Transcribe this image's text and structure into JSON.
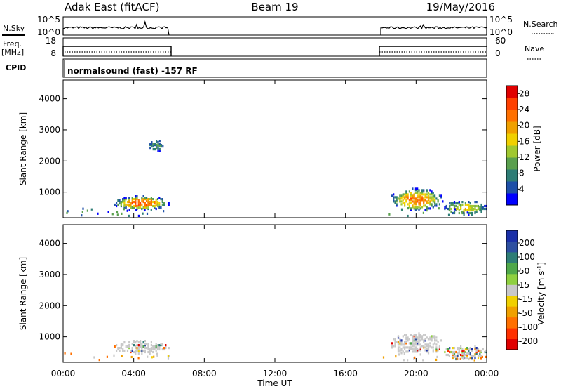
{
  "header": {
    "radar": "Adak East (fitACF)",
    "beam": "Beam 19",
    "date": "19/May/2016"
  },
  "top_panels": {
    "nsky_label": "N.Sky",
    "nsearch_label": "N.Search",
    "noise_ticks": [
      "10^5",
      "10^0"
    ],
    "freq_label": "Freq.",
    "freq_unit": "[MHz]",
    "freq_ticks": [
      "18",
      "8"
    ],
    "nave_label": "Nave",
    "nave_ticks": [
      "60",
      "0"
    ],
    "cpid_label": "CPID",
    "cpid_text": "normalsound (fast) -157 RF"
  },
  "colors": {
    "power_scale": [
      "#0000ff",
      "#1e50a8",
      "#2e7d76",
      "#5aa04e",
      "#a0c830",
      "#f0d000",
      "#f0a000",
      "#ff7000",
      "#ff4000",
      "#e00000"
    ],
    "velocity_scale": [
      "#1a2fa8",
      "#2d4fa0",
      "#2e7d76",
      "#4fa84a",
      "#8fd040",
      "#c8c8c8",
      "#f0d000",
      "#f0a000",
      "#ff7000",
      "#ff3000",
      "#e00000"
    ],
    "ground_scatter": "#c8c8c8"
  },
  "chart_data": [
    {
      "type": "heatmap",
      "name": "power",
      "xlabel": "",
      "ylabel": "Slant Range [km]",
      "x_ticks": [
        "00:00",
        "04:00",
        "08:00",
        "12:00",
        "16:00",
        "20:00",
        "00:00"
      ],
      "y_ticks": [
        "1000",
        "2000",
        "3000",
        "4000"
      ],
      "xlim": [
        0,
        24
      ],
      "ylim": [
        180,
        4600
      ],
      "colorbar": {
        "label": "Power [dB]",
        "ticks": [
          "4",
          "8",
          "12",
          "16",
          "20",
          "24",
          "28"
        ],
        "range": [
          0,
          30
        ]
      },
      "data_gap_hours": [
        6,
        18
      ],
      "scatter_regions": [
        {
          "t": [
            2.8,
            6.0
          ],
          "range": [
            380,
            850
          ],
          "peak": 24
        },
        {
          "t": [
            18.5,
            21.5
          ],
          "range": [
            350,
            1100
          ],
          "peak": 22
        },
        {
          "t": [
            21.5,
            24.0
          ],
          "range": [
            200,
            700
          ],
          "peak": 16
        },
        {
          "t": [
            4.8,
            5.7
          ],
          "range": [
            2250,
            2650
          ],
          "peak": 8
        }
      ]
    },
    {
      "type": "heatmap",
      "name": "velocity",
      "xlabel": "Time UT",
      "ylabel": "Slant Range [km]",
      "x_ticks": [
        "00:00",
        "04:00",
        "08:00",
        "12:00",
        "16:00",
        "20:00",
        "00:00"
      ],
      "y_ticks": [
        "1000",
        "2000",
        "3000",
        "4000"
      ],
      "xlim": [
        0,
        24
      ],
      "ylim": [
        180,
        4600
      ],
      "colorbar": {
        "label": "Velocity [m s",
        "label_sup": "-1",
        "label_end": "]",
        "ticks": [
          "200",
          "100",
          "50",
          "15",
          "-15",
          "-50",
          "-100",
          "-200"
        ]
      },
      "data_gap_hours": [
        6,
        18
      ],
      "scatter_regions": [
        {
          "t": [
            2.8,
            6.0
          ],
          "range": [
            380,
            850
          ],
          "mostly": "ground"
        },
        {
          "t": [
            18.5,
            21.5
          ],
          "range": [
            350,
            1100
          ],
          "mostly": "ground"
        },
        {
          "t": [
            21.5,
            24.0
          ],
          "range": [
            200,
            700
          ],
          "mostly": "mixed"
        }
      ]
    }
  ]
}
